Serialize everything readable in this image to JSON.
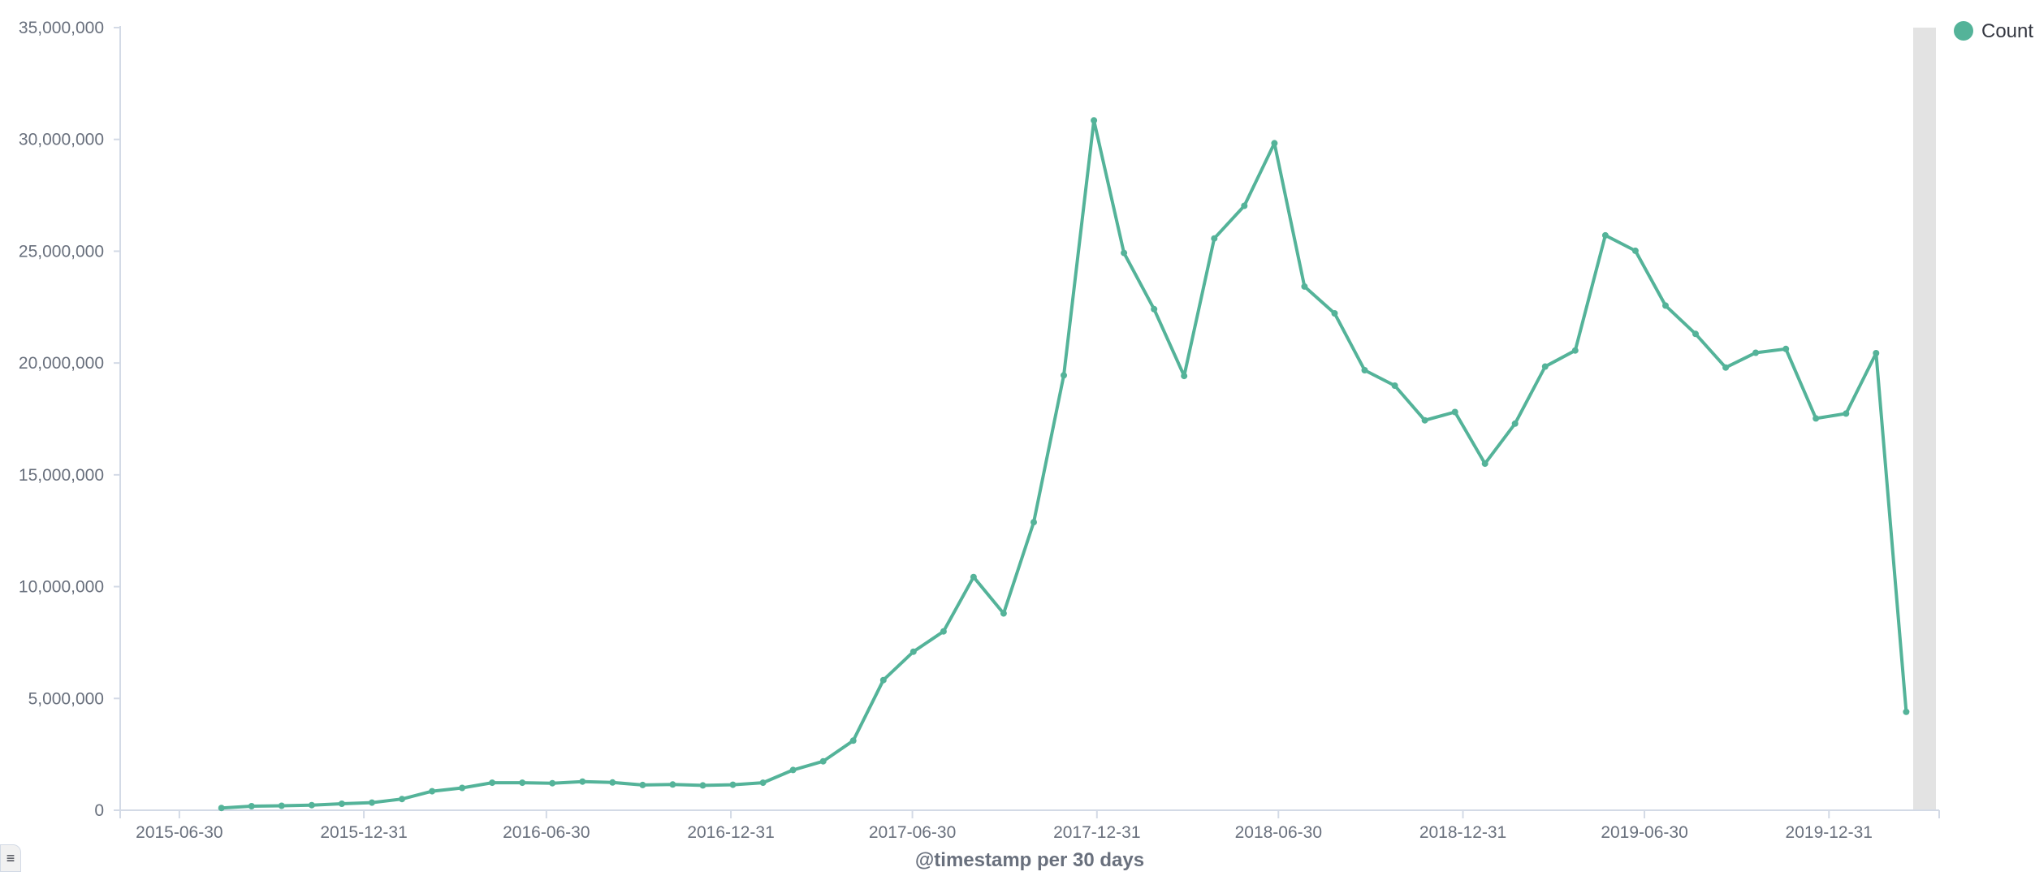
{
  "chart_data": {
    "type": "line",
    "xlabel": "@timestamp per 30 days",
    "ylabel": "",
    "ylim": [
      0,
      35000000
    ],
    "yticks": [
      0,
      5000000,
      10000000,
      15000000,
      20000000,
      25000000,
      30000000,
      35000000
    ],
    "ytick_labels": [
      "0",
      "5,000,000",
      "10,000,000",
      "15,000,000",
      "20,000,000",
      "25,000,000",
      "30,000,000",
      "35,000,000"
    ],
    "xlim": [
      "2015-05-02",
      "2020-03-24"
    ],
    "xticks": [
      "2015-06-30",
      "2015-12-31",
      "2016-06-30",
      "2016-12-31",
      "2017-06-30",
      "2017-12-31",
      "2018-06-30",
      "2018-12-31",
      "2019-06-30",
      "2019-12-31"
    ],
    "grid": false,
    "legend_position": "top-right",
    "color": "#54B399",
    "series": [
      {
        "name": "Count",
        "x": [
          "2015-08-11",
          "2015-09-10",
          "2015-10-10",
          "2015-11-09",
          "2015-12-09",
          "2016-01-08",
          "2016-02-07",
          "2016-03-08",
          "2016-04-07",
          "2016-05-07",
          "2016-06-06",
          "2016-07-06",
          "2016-08-05",
          "2016-09-04",
          "2016-10-04",
          "2016-11-03",
          "2016-12-03",
          "2017-01-02",
          "2017-02-01",
          "2017-03-03",
          "2017-04-02",
          "2017-05-02",
          "2017-06-01",
          "2017-07-01",
          "2017-07-31",
          "2017-08-30",
          "2017-09-29",
          "2017-10-29",
          "2017-11-28",
          "2017-12-28",
          "2018-01-27",
          "2018-02-26",
          "2018-03-28",
          "2018-04-27",
          "2018-05-27",
          "2018-06-26",
          "2018-07-26",
          "2018-08-25",
          "2018-09-24",
          "2018-10-24",
          "2018-11-23",
          "2018-12-23",
          "2019-01-22",
          "2019-02-21",
          "2019-03-23",
          "2019-04-22",
          "2019-05-22",
          "2019-06-21",
          "2019-07-21",
          "2019-08-20",
          "2019-09-19",
          "2019-10-19",
          "2019-11-18",
          "2019-12-18",
          "2020-01-17",
          "2020-02-16",
          "2020-03-17"
        ],
        "values": [
          100000,
          180000,
          200000,
          230000,
          290000,
          340000,
          500000,
          850000,
          1000000,
          1230000,
          1230000,
          1210000,
          1280000,
          1240000,
          1130000,
          1150000,
          1110000,
          1140000,
          1230000,
          1800000,
          2190000,
          3110000,
          5820000,
          7090000,
          8000000,
          10430000,
          8800000,
          12880000,
          19450000,
          30850000,
          24920000,
          22410000,
          19420000,
          25570000,
          27030000,
          29830000,
          23420000,
          22220000,
          19680000,
          18990000,
          17440000,
          17810000,
          15500000,
          17290000,
          19840000,
          20560000,
          25710000,
          25020000,
          22570000,
          21300000,
          19800000,
          20460000,
          20630000,
          17520000,
          17740000,
          20440000,
          4400000
        ]
      }
    ]
  }
}
